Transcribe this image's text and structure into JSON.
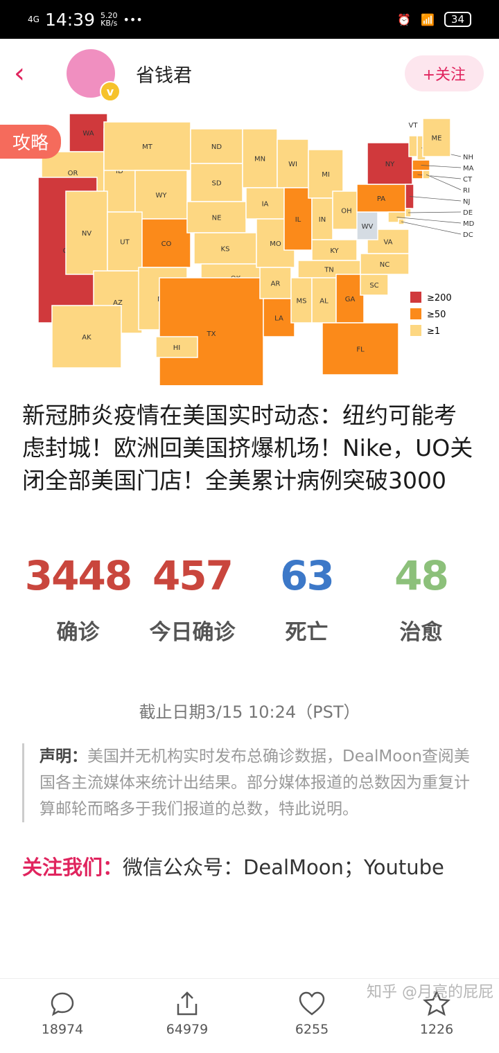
{
  "status": {
    "network": "4G",
    "time": "14:39",
    "speed": "5.20",
    "speed_unit": "KB/s",
    "more": "•••",
    "battery": "34"
  },
  "header": {
    "author": "省钱君",
    "follow": "+关注",
    "verified": "v"
  },
  "map": {
    "tag": "攻略",
    "legend": [
      {
        "label": "≥200",
        "color": "#d0393c"
      },
      {
        "label": "≥50",
        "color": "#fb8a1a"
      },
      {
        "label": "≥1",
        "color": "#fdd782"
      }
    ],
    "states": [
      [
        "WA",
        2
      ],
      [
        "OR",
        0
      ],
      [
        "CA",
        2
      ],
      [
        "ID",
        0
      ],
      [
        "NV",
        0
      ],
      [
        "MT",
        0
      ],
      [
        "WY",
        0
      ],
      [
        "UT",
        0
      ],
      [
        "AZ",
        0
      ],
      [
        "CO",
        1
      ],
      [
        "NM",
        0
      ],
      [
        "ND",
        0
      ],
      [
        "SD",
        0
      ],
      [
        "NE",
        0
      ],
      [
        "KS",
        0
      ],
      [
        "OK",
        0
      ],
      [
        "TX",
        1
      ],
      [
        "MN",
        0
      ],
      [
        "IA",
        0
      ],
      [
        "MO",
        0
      ],
      [
        "AR",
        0
      ],
      [
        "LA",
        1
      ],
      [
        "WI",
        0
      ],
      [
        "IL",
        1
      ],
      [
        "MI",
        0
      ],
      [
        "IN",
        0
      ],
      [
        "OH",
        0
      ],
      [
        "KY",
        0
      ],
      [
        "TN",
        0
      ],
      [
        "MS",
        0
      ],
      [
        "AL",
        0
      ],
      [
        "GA",
        1
      ],
      [
        "FL",
        1
      ],
      [
        "SC",
        0
      ],
      [
        "NC",
        0
      ],
      [
        "VA",
        0
      ],
      [
        "WV",
        -1
      ],
      [
        "PA",
        1
      ],
      [
        "NY",
        2
      ],
      [
        "VT",
        0
      ],
      [
        "NH",
        0
      ],
      [
        "ME",
        0
      ],
      [
        "MA",
        1
      ],
      [
        "CT",
        1
      ],
      [
        "RI",
        0
      ],
      [
        "NJ",
        2
      ],
      [
        "DE",
        0
      ],
      [
        "MD",
        0
      ],
      [
        "DC",
        0
      ],
      [
        "AK",
        0
      ],
      [
        "HI",
        0
      ]
    ]
  },
  "title": "新冠肺炎疫情在美国实时动态：纽约可能考虑封城！欧洲回美国挤爆机场！Nike，UO关闭全部美国门店！全美累计病例突破3000",
  "stats": [
    {
      "value": "3448",
      "label": "确诊",
      "color": "#c9463d"
    },
    {
      "value": "457",
      "label": "今日确诊",
      "color": "#c9463d"
    },
    {
      "value": "63",
      "label": "死亡",
      "color": "#3c78c8"
    },
    {
      "value": "48",
      "label": "治愈",
      "color": "#8cc07a"
    }
  ],
  "date": "截止日期3/15 10:24（PST）",
  "note": {
    "label": "声明：",
    "text": "美国并无机构实时发布总确诊数据，DealMoon查阅美国各主流媒体来统计出结果。部分媒体报道的总数因为重复计算邮轮而略多于我们报道的总数，特此说明。"
  },
  "follow_us": {
    "label": "关注我们：",
    "text": "微信公众号：DealMoon；Youtube"
  },
  "bottom": {
    "comments": "18974",
    "shares": "64979",
    "likes": "6255",
    "favorites": "1226"
  },
  "watermark": "知乎 @月亮的屁屁"
}
